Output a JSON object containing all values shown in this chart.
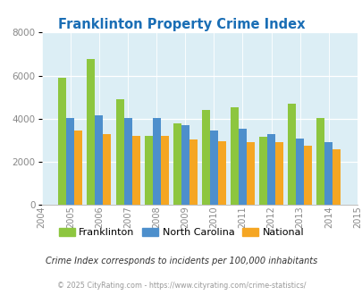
{
  "title": "Franklinton Property Crime Index",
  "years": [
    2005,
    2006,
    2007,
    2008,
    2009,
    2010,
    2011,
    2012,
    2013,
    2014
  ],
  "franklinton": [
    5900,
    6750,
    4900,
    3200,
    3800,
    4400,
    4550,
    3150,
    4700,
    4050
  ],
  "north_carolina": [
    4050,
    4150,
    4050,
    4050,
    3700,
    3450,
    3550,
    3300,
    3100,
    2900
  ],
  "national": [
    3450,
    3300,
    3200,
    3200,
    3050,
    2950,
    2900,
    2900,
    2750,
    2600
  ],
  "color_franklinton": "#8dc63f",
  "color_nc": "#4d8fcc",
  "color_national": "#f5a623",
  "bg_color": "#dceef5",
  "ylim": [
    0,
    8000
  ],
  "yticks": [
    0,
    2000,
    4000,
    6000,
    8000
  ],
  "xlim_min": 2004,
  "xlim_max": 2015,
  "xlabel_note": "Crime Index corresponds to incidents per 100,000 inhabitants",
  "footer": "© 2025 CityRating.com - https://www.cityrating.com/crime-statistics/",
  "title_color": "#1a6eb5",
  "note_color": "#333333",
  "footer_color": "#999999",
  "bar_width": 0.28
}
